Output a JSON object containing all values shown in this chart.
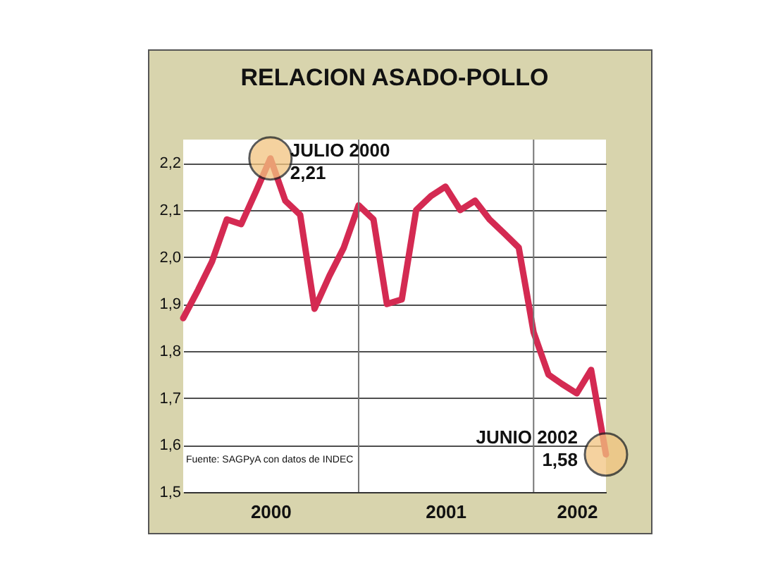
{
  "chart_data": {
    "type": "line",
    "title": "RELACION ASADO-POLLO",
    "x": [
      "2000-01",
      "2000-02",
      "2000-03",
      "2000-04",
      "2000-05",
      "2000-06",
      "2000-07",
      "2000-08",
      "2000-09",
      "2000-10",
      "2000-11",
      "2000-12",
      "2001-01",
      "2001-02",
      "2001-03",
      "2001-04",
      "2001-05",
      "2001-06",
      "2001-07",
      "2001-08",
      "2001-09",
      "2001-10",
      "2001-11",
      "2001-12",
      "2002-01",
      "2002-02",
      "2002-03",
      "2002-04",
      "2002-05",
      "2002-06"
    ],
    "series": [
      {
        "color": "#d42a52",
        "values": [
          1.87,
          1.93,
          1.99,
          2.08,
          2.07,
          2.14,
          2.21,
          2.12,
          2.09,
          1.89,
          1.96,
          2.02,
          2.11,
          2.08,
          1.9,
          1.91,
          2.1,
          2.13,
          2.15,
          2.1,
          2.12,
          2.08,
          2.05,
          2.02,
          1.84,
          1.75,
          1.73,
          1.71,
          1.76,
          1.58
        ]
      }
    ],
    "xlim": [
      "2000-01",
      "2002-06"
    ],
    "xticks": [
      {
        "value": "2000-07",
        "label": "2000"
      },
      {
        "value": "2001-07",
        "label": "2001"
      },
      {
        "value": "2002-04",
        "label": "2002"
      }
    ],
    "ylim": [
      1.5,
      2.25
    ],
    "yticks": [
      {
        "value": 1.5,
        "label": "1,5"
      },
      {
        "value": 1.6,
        "label": "1,6"
      },
      {
        "value": 1.7,
        "label": "1,7"
      },
      {
        "value": 1.8,
        "label": "1,8"
      },
      {
        "value": 1.9,
        "label": "1,9"
      },
      {
        "value": 2.0,
        "label": "2,0"
      },
      {
        "value": 2.1,
        "label": "2,1"
      },
      {
        "value": 2.2,
        "label": "2,2"
      }
    ],
    "ref_lines": [
      {
        "axis": "x",
        "value": "2001-01"
      },
      {
        "axis": "x",
        "value": "2002-01"
      }
    ],
    "grid": "y",
    "annotations": [
      {
        "text": "JULIO 2000\n2,21",
        "x": "2000-07",
        "y": 2.21
      },
      {
        "text": "JUNIO 2002\n1,58",
        "x": "2002-06",
        "y": 1.58
      },
      "Fuente: SAGPyA con datos de INDEC"
    ]
  }
}
